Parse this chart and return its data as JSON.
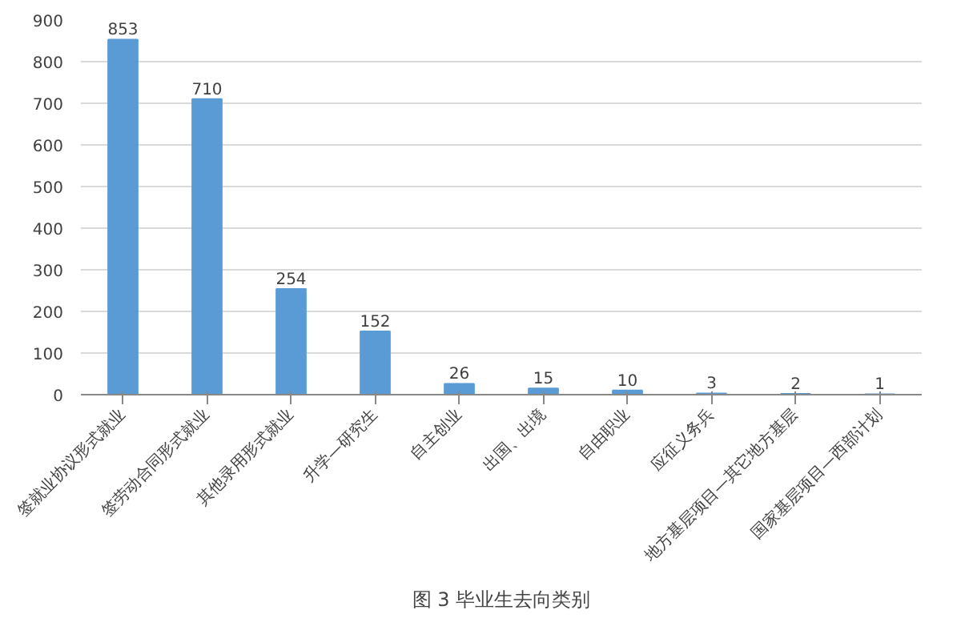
{
  "chart_data": {
    "type": "bar",
    "title": "图 3 毕业生去向类别",
    "categories": [
      "签就业协议形式就业",
      "签劳动合同形式就业",
      "其他录用形式就业",
      "升学—研究生",
      "自主创业",
      "出国、出境",
      "自由职业",
      "应征义务兵",
      "地方基层项目—其它地方基层",
      "国家基层项目—西部计划"
    ],
    "values": [
      853,
      710,
      254,
      152,
      26,
      15,
      10,
      3,
      2,
      1
    ],
    "color": "#5b9bd5",
    "ylim": [
      0,
      900
    ],
    "yticks": [
      0,
      100,
      200,
      300,
      400,
      500,
      600,
      700,
      800,
      900
    ],
    "grid": "y",
    "data_labels": true
  }
}
